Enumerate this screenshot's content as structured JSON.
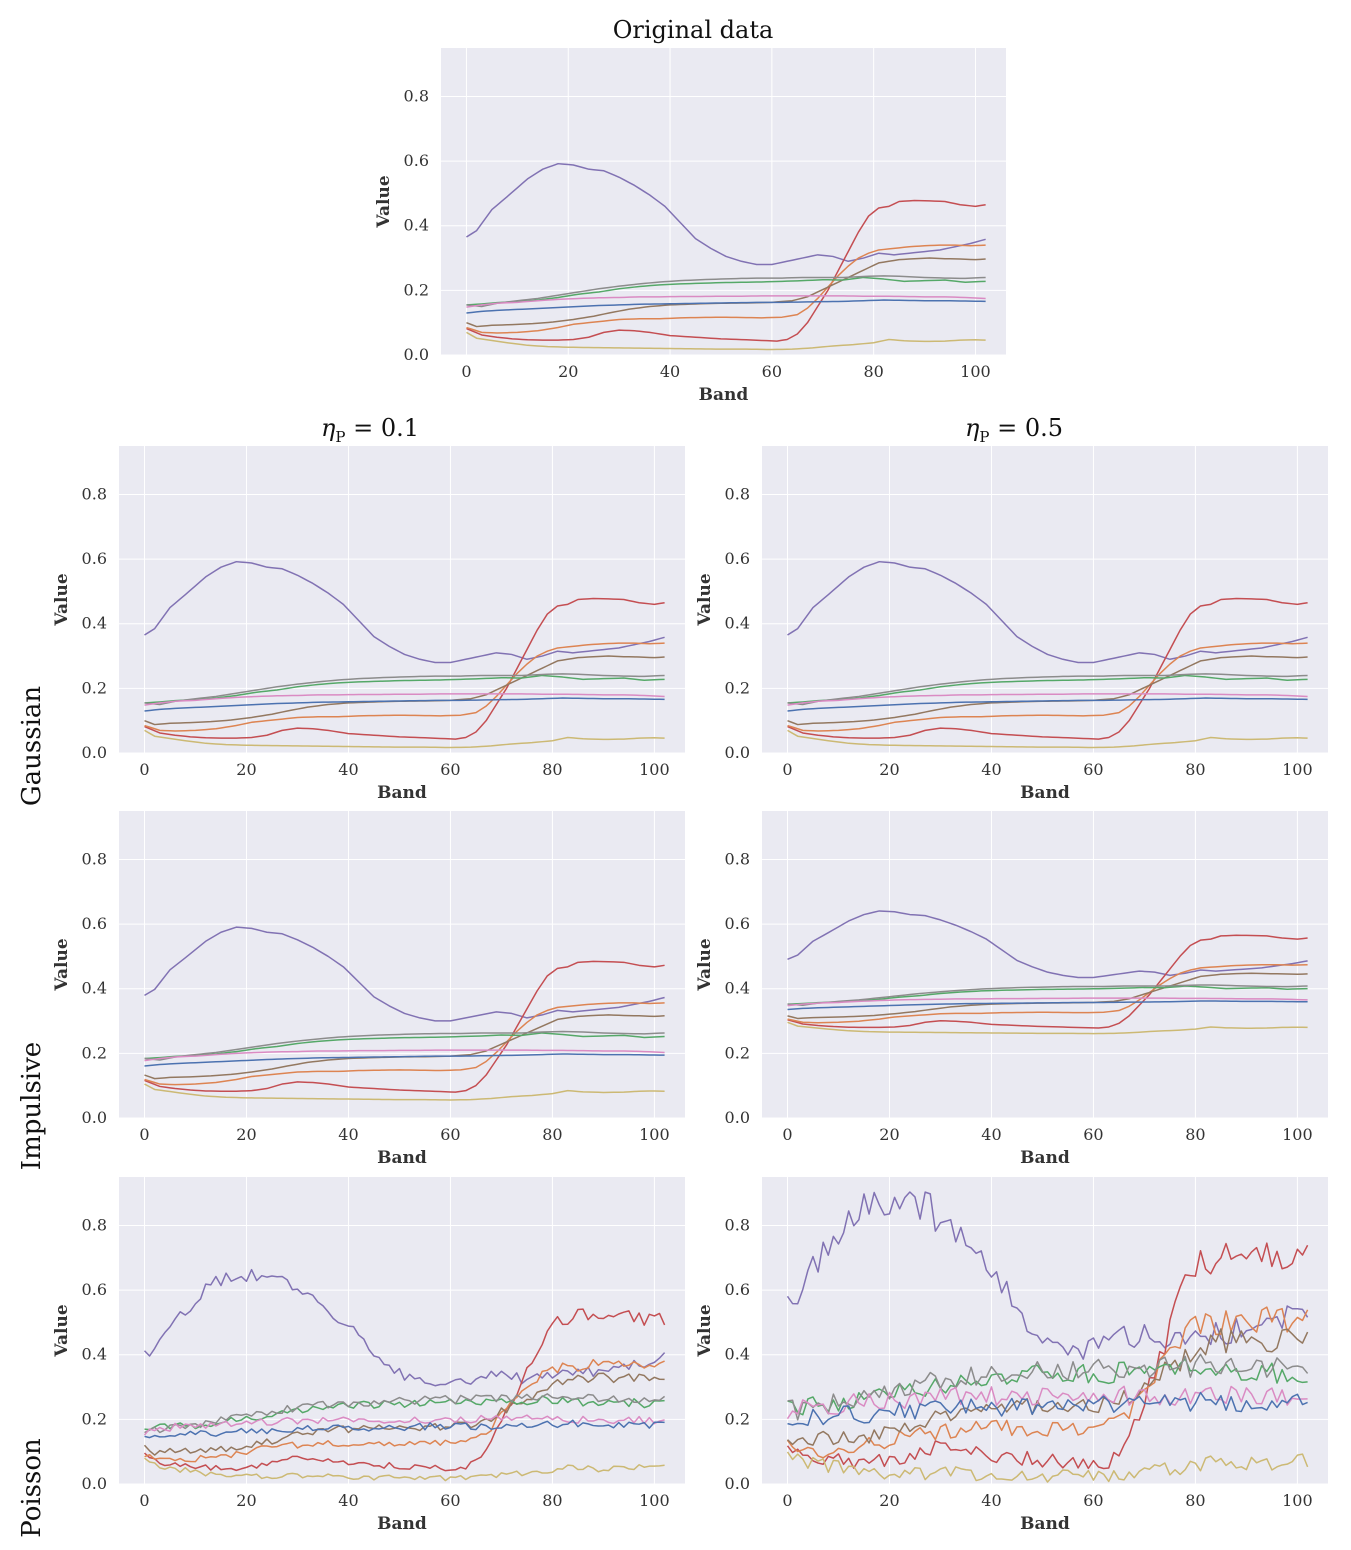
{
  "figure": {
    "top_title": "Original data",
    "column_titles": [
      {
        "eta": "η",
        "sub": "P",
        "rest": " = 0.1"
      },
      {
        "eta": "η",
        "sub": "P",
        "rest": " = 0.5"
      }
    ],
    "row_labels": [
      "Gaussian",
      "Impulsive",
      "Poisson"
    ]
  },
  "chart_data": {
    "type": "line",
    "xlabel": "Band",
    "ylabel": "Value",
    "xlim": [
      -5,
      106
    ],
    "ylim": [
      0,
      0.95
    ],
    "xticks": [
      0,
      20,
      40,
      60,
      80,
      100
    ],
    "yticks": [
      0.0,
      0.2,
      0.4,
      0.6,
      0.8
    ],
    "band_count": 103,
    "series_colors": {
      "blue": "#4c72b0",
      "orange": "#dd8452",
      "green": "#55a868",
      "red": "#c44e52",
      "purple": "#8172b3",
      "brown": "#937860",
      "pink": "#da8bc3",
      "gray": "#8c8c8c",
      "olive": "#ccb974"
    },
    "base_series": [
      {
        "name": "purple",
        "points": [
          [
            0,
            0.365
          ],
          [
            2,
            0.385
          ],
          [
            5,
            0.45
          ],
          [
            8,
            0.49
          ],
          [
            12,
            0.545
          ],
          [
            15,
            0.575
          ],
          [
            18,
            0.592
          ],
          [
            21,
            0.588
          ],
          [
            24,
            0.575
          ],
          [
            27,
            0.57
          ],
          [
            30,
            0.55
          ],
          [
            33,
            0.525
          ],
          [
            36,
            0.495
          ],
          [
            39,
            0.46
          ],
          [
            42,
            0.41
          ],
          [
            45,
            0.36
          ],
          [
            48,
            0.33
          ],
          [
            51,
            0.305
          ],
          [
            54,
            0.29
          ],
          [
            57,
            0.28
          ],
          [
            60,
            0.28
          ],
          [
            63,
            0.29
          ],
          [
            66,
            0.3
          ],
          [
            69,
            0.31
          ],
          [
            72,
            0.305
          ],
          [
            75,
            0.29
          ],
          [
            78,
            0.3
          ],
          [
            81,
            0.315
          ],
          [
            84,
            0.31
          ],
          [
            87,
            0.315
          ],
          [
            90,
            0.32
          ],
          [
            93,
            0.325
          ],
          [
            96,
            0.335
          ],
          [
            99,
            0.345
          ],
          [
            102,
            0.358
          ]
        ]
      },
      {
        "name": "red",
        "points": [
          [
            0,
            0.082
          ],
          [
            3,
            0.062
          ],
          [
            6,
            0.055
          ],
          [
            9,
            0.05
          ],
          [
            12,
            0.047
          ],
          [
            15,
            0.046
          ],
          [
            18,
            0.046
          ],
          [
            21,
            0.048
          ],
          [
            24,
            0.055
          ],
          [
            27,
            0.07
          ],
          [
            30,
            0.077
          ],
          [
            33,
            0.075
          ],
          [
            36,
            0.07
          ],
          [
            40,
            0.06
          ],
          [
            45,
            0.055
          ],
          [
            50,
            0.05
          ],
          [
            55,
            0.047
          ],
          [
            58,
            0.045
          ],
          [
            61,
            0.043
          ],
          [
            63,
            0.048
          ],
          [
            65,
            0.065
          ],
          [
            67,
            0.1
          ],
          [
            69,
            0.15
          ],
          [
            71,
            0.2
          ],
          [
            73,
            0.26
          ],
          [
            75,
            0.32
          ],
          [
            77,
            0.38
          ],
          [
            79,
            0.43
          ],
          [
            81,
            0.455
          ],
          [
            83,
            0.46
          ],
          [
            85,
            0.475
          ],
          [
            88,
            0.478
          ],
          [
            91,
            0.477
          ],
          [
            94,
            0.475
          ],
          [
            97,
            0.465
          ],
          [
            100,
            0.46
          ],
          [
            102,
            0.465
          ]
        ]
      },
      {
        "name": "orange",
        "points": [
          [
            0,
            0.085
          ],
          [
            3,
            0.07
          ],
          [
            6,
            0.068
          ],
          [
            10,
            0.07
          ],
          [
            14,
            0.075
          ],
          [
            18,
            0.085
          ],
          [
            21,
            0.095
          ],
          [
            24,
            0.1
          ],
          [
            27,
            0.105
          ],
          [
            30,
            0.11
          ],
          [
            34,
            0.112
          ],
          [
            38,
            0.112
          ],
          [
            42,
            0.115
          ],
          [
            46,
            0.116
          ],
          [
            50,
            0.117
          ],
          [
            54,
            0.116
          ],
          [
            58,
            0.115
          ],
          [
            62,
            0.117
          ],
          [
            65,
            0.125
          ],
          [
            67,
            0.145
          ],
          [
            69,
            0.175
          ],
          [
            71,
            0.21
          ],
          [
            73,
            0.245
          ],
          [
            75,
            0.275
          ],
          [
            77,
            0.3
          ],
          [
            79,
            0.315
          ],
          [
            81,
            0.325
          ],
          [
            84,
            0.33
          ],
          [
            87,
            0.335
          ],
          [
            90,
            0.338
          ],
          [
            93,
            0.34
          ],
          [
            96,
            0.34
          ],
          [
            99,
            0.338
          ],
          [
            102,
            0.34
          ]
        ]
      },
      {
        "name": "brown",
        "points": [
          [
            0,
            0.1
          ],
          [
            2,
            0.088
          ],
          [
            5,
            0.092
          ],
          [
            9,
            0.094
          ],
          [
            13,
            0.097
          ],
          [
            17,
            0.102
          ],
          [
            21,
            0.11
          ],
          [
            25,
            0.12
          ],
          [
            28,
            0.13
          ],
          [
            32,
            0.142
          ],
          [
            36,
            0.15
          ],
          [
            40,
            0.155
          ],
          [
            45,
            0.158
          ],
          [
            50,
            0.16
          ],
          [
            55,
            0.161
          ],
          [
            60,
            0.163
          ],
          [
            64,
            0.168
          ],
          [
            67,
            0.18
          ],
          [
            69,
            0.195
          ],
          [
            71,
            0.21
          ],
          [
            73,
            0.225
          ],
          [
            75,
            0.24
          ],
          [
            77,
            0.255
          ],
          [
            79,
            0.27
          ],
          [
            81,
            0.285
          ],
          [
            83,
            0.29
          ],
          [
            85,
            0.295
          ],
          [
            88,
            0.298
          ],
          [
            91,
            0.3
          ],
          [
            94,
            0.298
          ],
          [
            97,
            0.297
          ],
          [
            100,
            0.295
          ],
          [
            102,
            0.297
          ]
        ]
      },
      {
        "name": "green",
        "points": [
          [
            0,
            0.155
          ],
          [
            3,
            0.158
          ],
          [
            6,
            0.162
          ],
          [
            10,
            0.165
          ],
          [
            14,
            0.17
          ],
          [
            18,
            0.178
          ],
          [
            22,
            0.188
          ],
          [
            26,
            0.195
          ],
          [
            30,
            0.205
          ],
          [
            34,
            0.212
          ],
          [
            38,
            0.217
          ],
          [
            42,
            0.22
          ],
          [
            46,
            0.222
          ],
          [
            50,
            0.224
          ],
          [
            54,
            0.225
          ],
          [
            58,
            0.226
          ],
          [
            62,
            0.228
          ],
          [
            66,
            0.23
          ],
          [
            70,
            0.233
          ],
          [
            74,
            0.232
          ],
          [
            78,
            0.24
          ],
          [
            82,
            0.235
          ],
          [
            86,
            0.228
          ],
          [
            90,
            0.23
          ],
          [
            94,
            0.232
          ],
          [
            98,
            0.225
          ],
          [
            102,
            0.228
          ]
        ]
      },
      {
        "name": "gray",
        "points": [
          [
            0,
            0.155
          ],
          [
            3,
            0.15
          ],
          [
            6,
            0.16
          ],
          [
            10,
            0.168
          ],
          [
            14,
            0.175
          ],
          [
            18,
            0.185
          ],
          [
            22,
            0.195
          ],
          [
            26,
            0.205
          ],
          [
            30,
            0.213
          ],
          [
            34,
            0.22
          ],
          [
            38,
            0.226
          ],
          [
            42,
            0.23
          ],
          [
            46,
            0.233
          ],
          [
            50,
            0.235
          ],
          [
            54,
            0.237
          ],
          [
            58,
            0.238
          ],
          [
            62,
            0.238
          ],
          [
            66,
            0.24
          ],
          [
            70,
            0.24
          ],
          [
            74,
            0.24
          ],
          [
            78,
            0.243
          ],
          [
            82,
            0.245
          ],
          [
            86,
            0.243
          ],
          [
            90,
            0.24
          ],
          [
            94,
            0.238
          ],
          [
            98,
            0.237
          ],
          [
            102,
            0.24
          ]
        ]
      },
      {
        "name": "pink",
        "points": [
          [
            0,
            0.148
          ],
          [
            3,
            0.155
          ],
          [
            6,
            0.16
          ],
          [
            10,
            0.163
          ],
          [
            14,
            0.168
          ],
          [
            18,
            0.172
          ],
          [
            22,
            0.175
          ],
          [
            26,
            0.177
          ],
          [
            30,
            0.178
          ],
          [
            34,
            0.18
          ],
          [
            38,
            0.18
          ],
          [
            42,
            0.181
          ],
          [
            46,
            0.181
          ],
          [
            50,
            0.182
          ],
          [
            54,
            0.182
          ],
          [
            58,
            0.183
          ],
          [
            62,
            0.183
          ],
          [
            66,
            0.183
          ],
          [
            70,
            0.183
          ],
          [
            74,
            0.183
          ],
          [
            78,
            0.182
          ],
          [
            82,
            0.182
          ],
          [
            86,
            0.181
          ],
          [
            90,
            0.18
          ],
          [
            94,
            0.18
          ],
          [
            98,
            0.178
          ],
          [
            102,
            0.175
          ]
        ]
      },
      {
        "name": "blue",
        "points": [
          [
            0,
            0.13
          ],
          [
            3,
            0.135
          ],
          [
            6,
            0.138
          ],
          [
            10,
            0.141
          ],
          [
            14,
            0.144
          ],
          [
            18,
            0.147
          ],
          [
            22,
            0.15
          ],
          [
            26,
            0.153
          ],
          [
            30,
            0.155
          ],
          [
            34,
            0.157
          ],
          [
            38,
            0.158
          ],
          [
            42,
            0.159
          ],
          [
            46,
            0.16
          ],
          [
            50,
            0.161
          ],
          [
            54,
            0.162
          ],
          [
            58,
            0.163
          ],
          [
            62,
            0.163
          ],
          [
            66,
            0.164
          ],
          [
            70,
            0.165
          ],
          [
            74,
            0.166
          ],
          [
            78,
            0.168
          ],
          [
            82,
            0.17
          ],
          [
            86,
            0.169
          ],
          [
            90,
            0.168
          ],
          [
            94,
            0.168
          ],
          [
            98,
            0.167
          ],
          [
            102,
            0.166
          ]
        ]
      },
      {
        "name": "olive",
        "points": [
          [
            0,
            0.07
          ],
          [
            2,
            0.052
          ],
          [
            5,
            0.045
          ],
          [
            8,
            0.038
          ],
          [
            12,
            0.03
          ],
          [
            16,
            0.026
          ],
          [
            20,
            0.024
          ],
          [
            25,
            0.023
          ],
          [
            30,
            0.022
          ],
          [
            35,
            0.021
          ],
          [
            40,
            0.02
          ],
          [
            45,
            0.019
          ],
          [
            50,
            0.018
          ],
          [
            55,
            0.018
          ],
          [
            60,
            0.017
          ],
          [
            64,
            0.018
          ],
          [
            68,
            0.022
          ],
          [
            72,
            0.028
          ],
          [
            76,
            0.032
          ],
          [
            80,
            0.038
          ],
          [
            83,
            0.048
          ],
          [
            86,
            0.044
          ],
          [
            90,
            0.042
          ],
          [
            94,
            0.043
          ],
          [
            97,
            0.046
          ],
          [
            100,
            0.047
          ],
          [
            102,
            0.046
          ]
        ]
      }
    ],
    "panels": [
      {
        "name": "original",
        "title": "Original data",
        "scale": 1.0,
        "offset": 0.0,
        "noise": 0.0,
        "seed": 1
      },
      {
        "name": "gaussian-0.1",
        "row": "Gaussian",
        "column": "0.1",
        "scale": 1.0,
        "offset": 0.0,
        "noise": 0.0,
        "seed": 2
      },
      {
        "name": "gaussian-0.5",
        "row": "Gaussian",
        "column": "0.5",
        "scale": 1.0,
        "offset": 0.0,
        "noise": 0.0,
        "seed": 3
      },
      {
        "name": "impulsive-0.1",
        "row": "Impulsive",
        "column": "0.1",
        "scale": 0.93,
        "offset": 0.04,
        "noise": 0.0,
        "seed": 4
      },
      {
        "name": "impulsive-0.5",
        "row": "Impulsive",
        "column": "0.5",
        "scale": 0.66,
        "offset": 0.25,
        "noise": 0.0,
        "seed": 5
      },
      {
        "name": "poisson-0.1",
        "row": "Poisson",
        "column": "0.1",
        "scale": 1.1,
        "offset": 0.0,
        "noise": 0.008,
        "seed": 6
      },
      {
        "name": "poisson-0.5",
        "row": "Poisson",
        "column": "0.5",
        "scale": 1.5,
        "offset": 0.0,
        "noise": 0.02,
        "seed": 7
      }
    ]
  }
}
